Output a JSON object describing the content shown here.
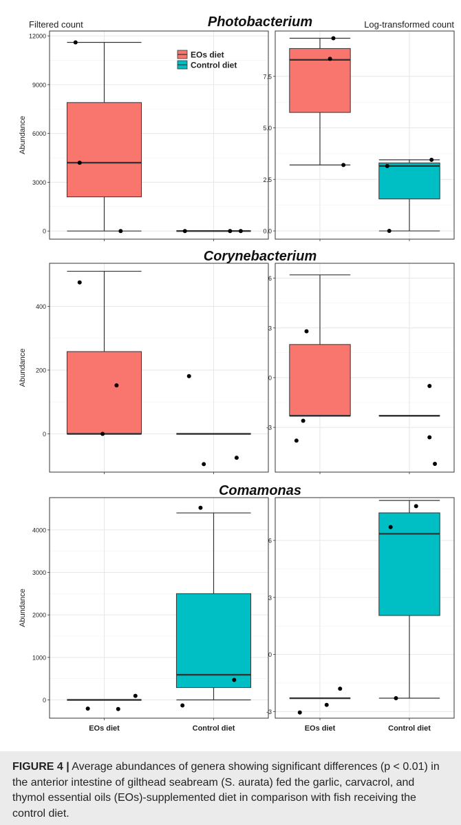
{
  "chart_data": [
    {
      "type": "box",
      "genus": "Photobacterium",
      "panel_label": "Filtered count",
      "ylabel": "Abundance",
      "ylim": [
        -500,
        12300
      ],
      "yticks": [
        0,
        3000,
        6000,
        9000,
        12000
      ],
      "ytick_labels": [
        "0",
        "3000",
        "6000",
        "9000",
        "12000"
      ],
      "categories": [
        "EOs diet",
        "Control diet"
      ],
      "legend": {
        "position": "top-right",
        "entries": [
          "EOs diet",
          "Control diet"
        ]
      },
      "boxes": [
        {
          "group": "EOs diet",
          "q1": 2100,
          "median": 4200,
          "q3": 7900,
          "whisker_low": 0,
          "whisker_high": 11600
        },
        {
          "group": "Control diet",
          "q1": 0,
          "median": 0,
          "q3": 0,
          "whisker_low": 0,
          "whisker_high": 0
        }
      ],
      "points": [
        {
          "group": "EOs diet",
          "y": 11600,
          "jitter": -0.35
        },
        {
          "group": "EOs diet",
          "y": 4200,
          "jitter": -0.3
        },
        {
          "group": "EOs diet",
          "y": 0,
          "jitter": 0.2
        },
        {
          "group": "Control diet",
          "y": 0,
          "jitter": -0.35
        },
        {
          "group": "Control diet",
          "y": 0,
          "jitter": 0.2
        },
        {
          "group": "Control diet",
          "y": 0,
          "jitter": 0.33
        }
      ]
    },
    {
      "type": "box",
      "genus": "Photobacterium",
      "panel_label": "Log-transformed count",
      "ylabel": "",
      "ylim": [
        -0.4,
        9.7
      ],
      "yticks": [
        0,
        2.5,
        5,
        7.5
      ],
      "ytick_labels": [
        "0.0",
        "2.5",
        "5.0",
        "7.5"
      ],
      "categories": [
        "EOs diet",
        "Control diet"
      ],
      "boxes": [
        {
          "group": "EOs diet",
          "q1": 5.75,
          "median": 8.3,
          "q3": 8.85,
          "whisker_low": 3.2,
          "whisker_high": 9.35
        },
        {
          "group": "Control diet",
          "q1": 1.55,
          "median": 3.15,
          "q3": 3.3,
          "whisker_low": 0,
          "whisker_high": 3.45
        }
      ],
      "points": [
        {
          "group": "EOs diet",
          "y": 9.35,
          "jitter": 0.2
        },
        {
          "group": "EOs diet",
          "y": 8.35,
          "jitter": 0.15
        },
        {
          "group": "EOs diet",
          "y": 3.2,
          "jitter": 0.35
        },
        {
          "group": "Control diet",
          "y": 3.45,
          "jitter": 0.33
        },
        {
          "group": "Control diet",
          "y": 3.15,
          "jitter": -0.33
        },
        {
          "group": "Control diet",
          "y": 0,
          "jitter": -0.3
        }
      ]
    },
    {
      "type": "box",
      "genus": "Corynebacterium",
      "panel_label": "",
      "ylabel": "Abundance",
      "ylim": [
        -120,
        535
      ],
      "yticks": [
        0,
        200,
        400
      ],
      "ytick_labels": [
        "0",
        "200",
        "400"
      ],
      "categories": [
        "EOs diet",
        "Control diet"
      ],
      "boxes": [
        {
          "group": "EOs diet",
          "q1": 0,
          "median": 0,
          "q3": 258,
          "whisker_low": 0,
          "whisker_high": 510
        },
        {
          "group": "Control diet",
          "q1": 0,
          "median": 0,
          "q3": 0,
          "whisker_low": 0,
          "whisker_high": 0
        }
      ],
      "points": [
        {
          "group": "EOs diet",
          "y": 475,
          "jitter": -0.3
        },
        {
          "group": "EOs diet",
          "y": 152,
          "jitter": 0.15
        },
        {
          "group": "EOs diet",
          "y": 0,
          "jitter": -0.02
        },
        {
          "group": "Control diet",
          "y": 181,
          "jitter": -0.3
        },
        {
          "group": "Control diet",
          "y": -75,
          "jitter": 0.28
        },
        {
          "group": "Control diet",
          "y": -95,
          "jitter": -0.12
        }
      ]
    },
    {
      "type": "box",
      "genus": "Corynebacterium",
      "panel_label": "",
      "ylabel": "",
      "ylim": [
        -5.7,
        6.9
      ],
      "yticks": [
        -3,
        0,
        3,
        6
      ],
      "ytick_labels": [
        "-3",
        "0",
        "3",
        "6"
      ],
      "categories": [
        "EOs diet",
        "Control diet"
      ],
      "boxes": [
        {
          "group": "EOs diet",
          "q1": -2.3,
          "median": -2.3,
          "q3": 2.0,
          "whisker_low": -2.3,
          "whisker_high": 6.2
        },
        {
          "group": "Control diet",
          "q1": -2.3,
          "median": -2.3,
          "q3": -2.3,
          "whisker_low": -2.3,
          "whisker_high": -2.3
        }
      ],
      "points": [
        {
          "group": "EOs diet",
          "y": 2.8,
          "jitter": -0.2
        },
        {
          "group": "EOs diet",
          "y": -2.6,
          "jitter": -0.25
        },
        {
          "group": "EOs diet",
          "y": -3.8,
          "jitter": -0.35
        },
        {
          "group": "Control diet",
          "y": -0.5,
          "jitter": 0.3
        },
        {
          "group": "Control diet",
          "y": -3.6,
          "jitter": 0.3
        },
        {
          "group": "Control diet",
          "y": -5.2,
          "jitter": 0.38
        }
      ]
    },
    {
      "type": "box",
      "genus": "Comamonas",
      "panel_label": "",
      "ylabel": "Abundance",
      "ylim": [
        -430,
        4760
      ],
      "yticks": [
        0,
        1000,
        2000,
        3000,
        4000
      ],
      "ytick_labels": [
        "0",
        "1000",
        "2000",
        "3000",
        "4000"
      ],
      "xtick_labels": [
        "EOs diet",
        "Control diet"
      ],
      "categories": [
        "EOs diet",
        "Control diet"
      ],
      "boxes": [
        {
          "group": "EOs diet",
          "q1": 0,
          "median": 0,
          "q3": 0,
          "whisker_low": 0,
          "whisker_high": 0
        },
        {
          "group": "Control diet",
          "q1": 290,
          "median": 590,
          "q3": 2500,
          "whisker_low": 0,
          "whisker_high": 4400
        }
      ],
      "points": [
        {
          "group": "EOs diet",
          "y": 95,
          "jitter": 0.38
        },
        {
          "group": "EOs diet",
          "y": -205,
          "jitter": -0.2
        },
        {
          "group": "EOs diet",
          "y": -215,
          "jitter": 0.17
        },
        {
          "group": "Control diet",
          "y": 4520,
          "jitter": -0.16
        },
        {
          "group": "Control diet",
          "y": 470,
          "jitter": 0.25
        },
        {
          "group": "Control diet",
          "y": -130,
          "jitter": -0.38
        }
      ]
    },
    {
      "type": "box",
      "genus": "Comamonas",
      "panel_label": "",
      "ylabel": "",
      "ylim": [
        -3.35,
        8.25
      ],
      "yticks": [
        -3,
        0,
        3,
        6
      ],
      "ytick_labels": [
        "-3",
        "0",
        "3",
        "6"
      ],
      "xtick_labels": [
        "EOs diet",
        "Control diet"
      ],
      "categories": [
        "EOs diet",
        "Control diet"
      ],
      "boxes": [
        {
          "group": "EOs diet",
          "q1": -2.3,
          "median": -2.3,
          "q3": -2.3,
          "whisker_low": -2.3,
          "whisker_high": -2.3
        },
        {
          "group": "Control diet",
          "q1": 2.05,
          "median": 6.35,
          "q3": 7.45,
          "whisker_low": -2.3,
          "whisker_high": 8.1
        }
      ],
      "points": [
        {
          "group": "EOs diet",
          "y": -1.8,
          "jitter": 0.3
        },
        {
          "group": "EOs diet",
          "y": -2.65,
          "jitter": 0.1
        },
        {
          "group": "EOs diet",
          "y": -3.05,
          "jitter": -0.3
        },
        {
          "group": "Control diet",
          "y": 7.8,
          "jitter": 0.1
        },
        {
          "group": "Control diet",
          "y": 6.7,
          "jitter": -0.28
        },
        {
          "group": "Control diet",
          "y": -2.3,
          "jitter": -0.2
        }
      ]
    }
  ],
  "colors": {
    "eos": "#f8766d",
    "control": "#00bfc4",
    "grid": "#e6e6e6"
  },
  "caption": {
    "label": "FIGURE 4 |",
    "text": " Average abundances of genera showing significant differences (p < 0.01) in the anterior intestine of gilthead seabream (S. aurata) fed the garlic, carvacrol, and thymol essential oils (EOs)-supplemented diet in comparison with fish receiving the control diet."
  }
}
